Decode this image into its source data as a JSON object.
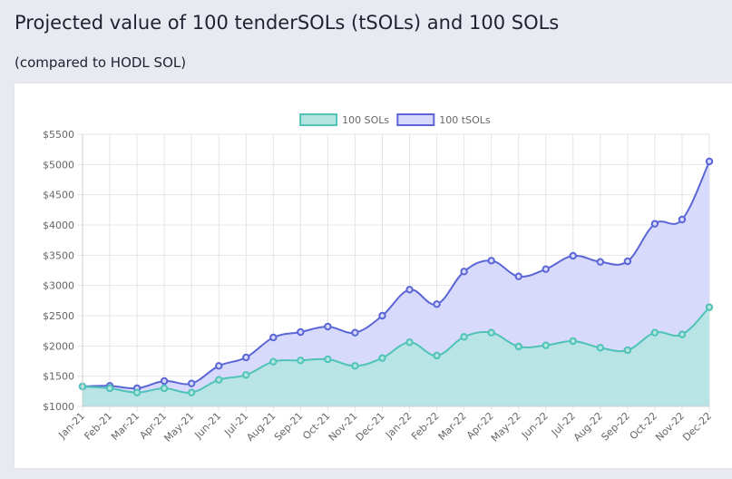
{
  "page": {
    "title": "Projected value of 100 tenderSOLs (tSOLs) and 100 SOLs",
    "subtitle": "(compared to HODL SOL)"
  },
  "chart_data": {
    "type": "area",
    "title": "",
    "xlabel": "",
    "ylabel": "",
    "categories": [
      "Jan-21",
      "Feb-21",
      "Mar-21",
      "Apr-21",
      "May-21",
      "Jun-21",
      "Jul-21",
      "Aug-21",
      "Sep-21",
      "Oct-21",
      "Nov-21",
      "Dec-21",
      "Jan-22",
      "Feb-22",
      "Mar-22",
      "Apr-22",
      "May-22",
      "Jun-22",
      "Jul-22",
      "Aug-22",
      "Sep-22",
      "Oct-22",
      "Nov-22",
      "Dec-22"
    ],
    "series": [
      {
        "name": "100 SOLs",
        "color": "#4fc3b8",
        "fill": "#b3e5e0",
        "values": [
          1330,
          1300,
          1230,
          1300,
          1230,
          1440,
          1520,
          1740,
          1760,
          1780,
          1670,
          1800,
          2060,
          1840,
          2150,
          2220,
          1990,
          2010,
          2080,
          1970,
          1930,
          2220,
          2190,
          2640
        ]
      },
      {
        "name": "100 tSOLs",
        "color": "#5a66d6",
        "fill": "#d8dafb",
        "values": [
          1330,
          1340,
          1300,
          1420,
          1380,
          1670,
          1810,
          2140,
          2230,
          2320,
          2220,
          2500,
          2930,
          2690,
          3230,
          3410,
          3150,
          3270,
          3490,
          3390,
          3400,
          4020,
          4090,
          5050
        ]
      }
    ],
    "ylim": [
      1000,
      5500
    ],
    "y_ticks": [
      "$1000",
      "$1500",
      "$2000",
      "$2500",
      "$3000",
      "$3500",
      "$4000",
      "$4500",
      "$5000",
      "$5500"
    ],
    "grid": true,
    "legend_position": "top-center"
  }
}
